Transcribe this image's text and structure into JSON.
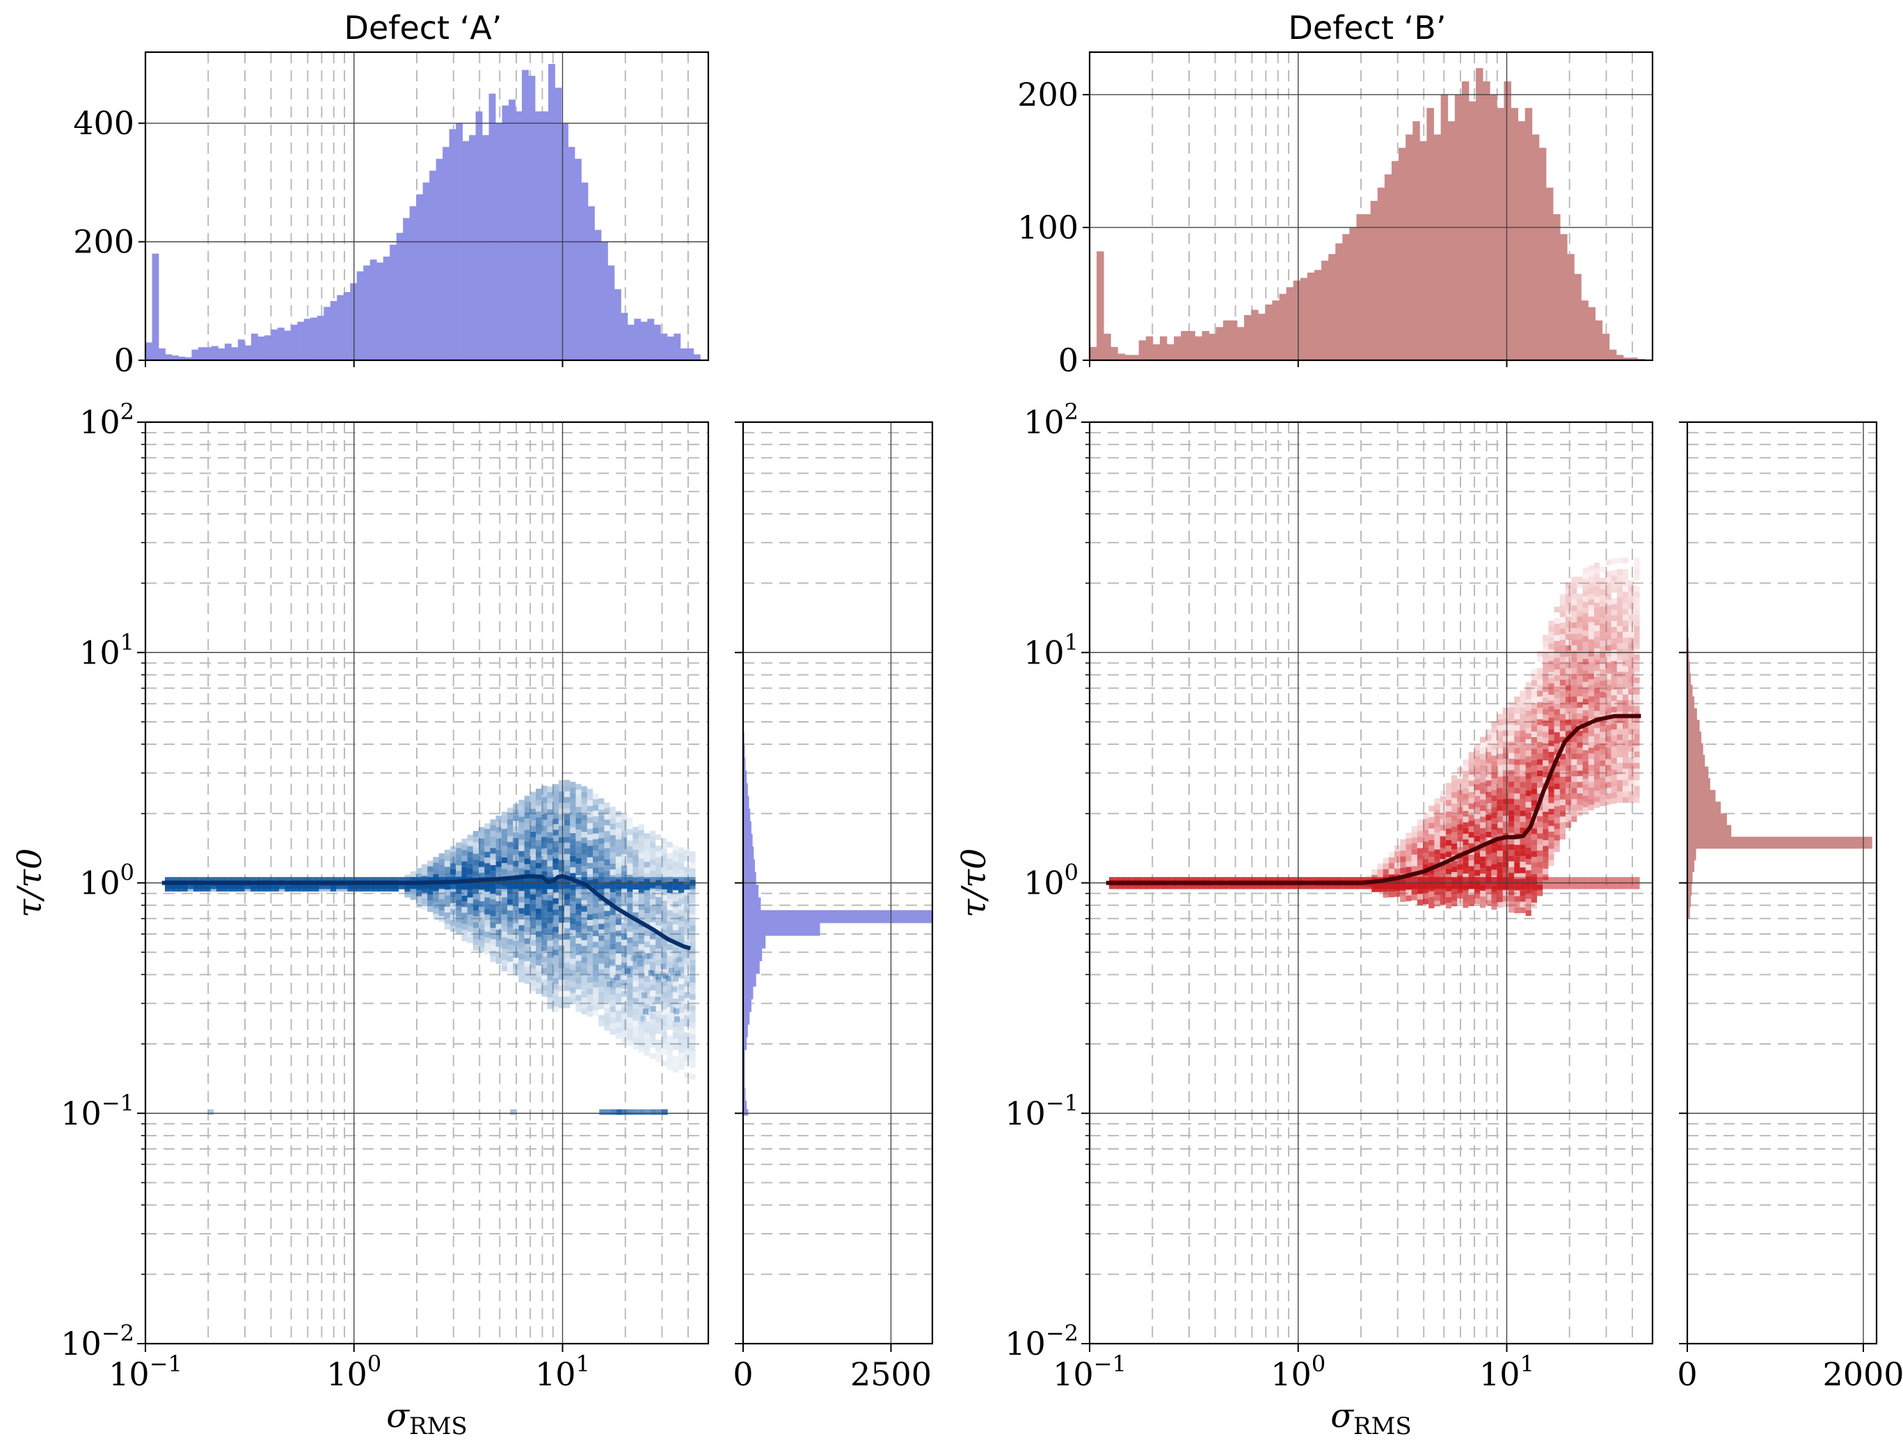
{
  "figure": {
    "colors": {
      "defect_a_hist": "#8e91e4",
      "defect_b_hist": "#c98a88",
      "defect_a_heat": "#08519c",
      "defect_b_heat": "#cb181d",
      "defect_a_curve": "#08306b",
      "defect_b_curve": "#4a0006"
    }
  },
  "chart_data": [
    {
      "id": "A-top",
      "type": "bar",
      "title": "Defect ‘A’",
      "xscale": "log",
      "xlim": [
        0.1,
        50
      ],
      "ylim": [
        0,
        520
      ],
      "yticks": [
        "0",
        "200",
        "400"
      ],
      "ytick_values": [
        0,
        200,
        400
      ],
      "bins_x": [
        0.1,
        45.7
      ],
      "values": [
        30,
        180,
        20,
        10,
        8,
        6,
        5,
        18,
        22,
        22,
        24,
        20,
        28,
        22,
        35,
        25,
        45,
        40,
        42,
        52,
        55,
        50,
        60,
        65,
        70,
        72,
        75,
        90,
        100,
        110,
        115,
        130,
        150,
        160,
        170,
        165,
        175,
        195,
        215,
        240,
        260,
        280,
        300,
        320,
        340,
        360,
        390,
        400,
        370,
        380,
        420,
        380,
        450,
        400,
        430,
        440,
        420,
        490,
        480,
        420,
        420,
        500,
        460,
        400,
        360,
        340,
        300,
        260,
        220,
        200,
        160,
        120,
        80,
        60,
        70,
        65,
        70,
        60,
        45,
        40,
        45,
        20,
        20,
        10
      ]
    },
    {
      "id": "A-main",
      "type": "heatmap",
      "xscale": "log",
      "yscale": "log",
      "xlim": [
        0.1,
        50
      ],
      "ylim": [
        0.01,
        100
      ],
      "xticks": [
        "10−1",
        "100",
        "101"
      ],
      "xtick_values": [
        0.1,
        1,
        10
      ],
      "yticks": [
        "10−2",
        "10−1",
        "100",
        "101",
        "102"
      ],
      "ytick_values": [
        0.01,
        0.1,
        1,
        10,
        100
      ],
      "xlabel": "σRMS",
      "ylabel": "τ/τ0",
      "median_curve": {
        "x": [
          0.12,
          0.2,
          0.5,
          1,
          2,
          3,
          5,
          7,
          8,
          8.5,
          9,
          9.5,
          10,
          11,
          13,
          15,
          18,
          22,
          27,
          32,
          38,
          41
        ],
        "y": [
          1.0,
          1.0,
          1.0,
          1.0,
          1.0,
          1.01,
          1.04,
          1.07,
          1.06,
          1.01,
          1.02,
          1.06,
          1.07,
          1.04,
          0.98,
          0.88,
          0.78,
          0.7,
          0.63,
          0.57,
          0.53,
          0.52
        ]
      }
    },
    {
      "id": "A-right",
      "type": "bar",
      "orientation": "horizontal",
      "xlim": [
        0,
        3200
      ],
      "xticks": [
        "0",
        "2500"
      ],
      "xtick_values": [
        0,
        2500
      ],
      "yscale": "log",
      "ylim": [
        0.01,
        100
      ],
      "bins_y": [
        0.1,
        4.5
      ],
      "values": [
        60,
        40,
        30,
        30,
        30,
        60,
        80,
        110,
        140,
        170,
        220,
        280,
        320,
        380,
        1300,
        3200,
        300,
        260,
        220,
        200,
        180,
        160,
        140,
        120,
        100,
        80,
        60,
        40,
        30,
        20
      ]
    },
    {
      "id": "B-top",
      "type": "bar",
      "title": "Defect ‘B’",
      "xscale": "log",
      "xlim": [
        0.1,
        50
      ],
      "ylim": [
        0,
        232
      ],
      "yticks": [
        "0",
        "100",
        "200"
      ],
      "ytick_values": [
        0,
        100,
        200
      ],
      "bins_x": [
        0.1,
        45.7
      ],
      "values": [
        10,
        82,
        20,
        10,
        5,
        4,
        4,
        15,
        18,
        12,
        18,
        12,
        18,
        22,
        22,
        18,
        22,
        20,
        25,
        30,
        30,
        25,
        34,
        38,
        35,
        42,
        45,
        50,
        55,
        60,
        62,
        66,
        68,
        75,
        80,
        88,
        95,
        100,
        110,
        110,
        120,
        130,
        140,
        150,
        160,
        170,
        180,
        165,
        190,
        170,
        200,
        180,
        200,
        210,
        195,
        220,
        210,
        200,
        190,
        210,
        190,
        180,
        190,
        170,
        160,
        130,
        110,
        95,
        80,
        65,
        45,
        40,
        30,
        20,
        8,
        4,
        2,
        2,
        1
      ]
    },
    {
      "id": "B-main",
      "type": "heatmap",
      "xscale": "log",
      "yscale": "log",
      "xlim": [
        0.1,
        50
      ],
      "ylim": [
        0.01,
        100
      ],
      "xticks": [
        "10−1",
        "100",
        "101"
      ],
      "xtick_values": [
        0.1,
        1,
        10
      ],
      "yticks": [
        "10−2",
        "10−1",
        "100",
        "101",
        "102"
      ],
      "ytick_values": [
        0.01,
        0.1,
        1,
        10,
        100
      ],
      "xlabel": "σRMS",
      "ylabel": "τ/τ0",
      "median_curve": {
        "x": [
          0.12,
          0.5,
          1,
          1.5,
          2,
          2.5,
          3,
          4,
          5,
          6,
          7,
          8,
          9,
          10,
          11,
          12,
          13,
          14,
          15,
          17,
          19,
          22,
          27,
          33,
          40,
          44
        ],
        "y": [
          1.0,
          1.0,
          1.0,
          1.0,
          1.0,
          1.02,
          1.05,
          1.12,
          1.22,
          1.32,
          1.4,
          1.48,
          1.55,
          1.58,
          1.58,
          1.6,
          1.75,
          2.1,
          2.5,
          3.3,
          4.1,
          4.7,
          5.1,
          5.3,
          5.3,
          5.3
        ]
      }
    },
    {
      "id": "B-right",
      "type": "bar",
      "orientation": "horizontal",
      "xlim": [
        0,
        2150
      ],
      "xticks": [
        "0",
        "2000"
      ],
      "xtick_values": [
        0,
        2000
      ],
      "yscale": "log",
      "ylim": [
        0.01,
        100
      ],
      "bins_y": [
        0.7,
        13
      ],
      "values": [
        30,
        40,
        50,
        60,
        80,
        100,
        2100,
        500,
        450,
        380,
        320,
        260,
        240,
        200,
        180,
        160,
        140,
        110,
        80,
        60,
        40,
        30,
        20,
        15,
        10
      ]
    }
  ]
}
